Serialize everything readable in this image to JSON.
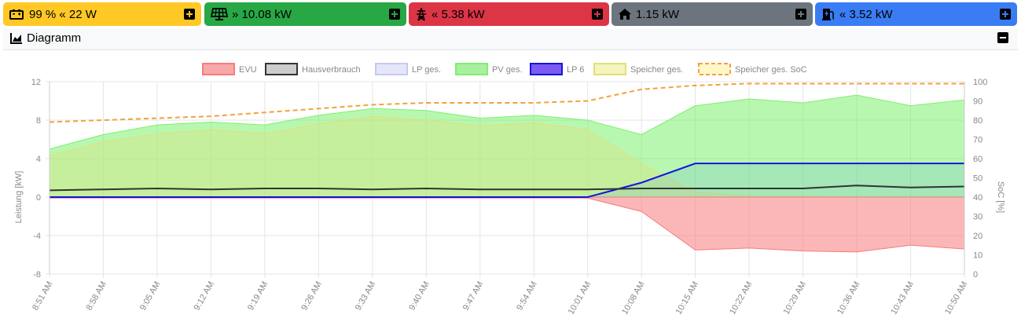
{
  "tiles": [
    {
      "id": "battery",
      "value": "99 % « 22 W",
      "color": "#ffc824",
      "text": "#000000"
    },
    {
      "id": "pv",
      "value": "» 10.08 kW",
      "color": "#28a745",
      "text": "#ffffff"
    },
    {
      "id": "grid",
      "value": "« 5.38 kW",
      "color": "#dc3545",
      "text": "#ffffff"
    },
    {
      "id": "house",
      "value": "1.15 kW",
      "color": "#6c757d",
      "text": "#ffffff"
    },
    {
      "id": "charge",
      "value": "« 3.52 kW",
      "color": "#3a7cf3",
      "text": "#ffffff"
    }
  ],
  "panel": {
    "title": "Diagramm"
  },
  "chart_data": {
    "type": "area",
    "x": [
      "8:51 AM",
      "8:58 AM",
      "9:05 AM",
      "9:12 AM",
      "9:19 AM",
      "9:26 AM",
      "9:33 AM",
      "9:40 AM",
      "9:47 AM",
      "9:54 AM",
      "10:01 AM",
      "10:08 AM",
      "10:15 AM",
      "10:22 AM",
      "10:29 AM",
      "10:36 AM",
      "10:43 AM",
      "10:50 AM"
    ],
    "ylabel": "Leistung [kW]",
    "y2label": "SoC [%]",
    "ylim": [
      -8,
      12
    ],
    "y2lim": [
      0,
      100
    ],
    "yticks": [
      "12",
      "8",
      "4",
      "0",
      "-4",
      "-8"
    ],
    "y2ticks": [
      "100",
      "90",
      "80",
      "70",
      "60",
      "50",
      "40",
      "30",
      "20",
      "10",
      "0"
    ],
    "legend": [
      "EVU",
      "Hausverbrauch",
      "LP ges.",
      "PV ges.",
      "LP 6",
      "Speicher ges.",
      "Speicher ges. SoC"
    ],
    "legend_position": "top",
    "grid": true,
    "series": [
      {
        "name": "EVU",
        "color": "#f77b7b",
        "values": [
          -0.1,
          -0.1,
          -0.1,
          -0.1,
          -0.1,
          -0.1,
          -0.1,
          -0.1,
          -0.1,
          -0.1,
          -0.1,
          -1.5,
          -5.5,
          -5.3,
          -5.6,
          -5.7,
          -5.0,
          -5.4
        ]
      },
      {
        "name": "Hausverbrauch",
        "color": "#333333",
        "values": [
          0.7,
          0.8,
          0.9,
          0.8,
          0.9,
          0.9,
          0.8,
          0.9,
          0.8,
          0.8,
          0.8,
          0.9,
          0.9,
          0.9,
          0.9,
          1.2,
          1.0,
          1.1
        ]
      },
      {
        "name": "PV ges.",
        "color": "#7ef06f",
        "values": [
          5.0,
          6.5,
          7.5,
          7.8,
          7.5,
          8.5,
          9.2,
          9.0,
          8.2,
          8.5,
          8.0,
          6.5,
          9.5,
          10.2,
          9.8,
          10.6,
          9.5,
          10.1
        ]
      },
      {
        "name": "LP 6",
        "color": "#1414e0",
        "values": [
          0,
          0,
          0,
          0,
          0,
          0,
          0,
          0,
          0,
          0,
          0,
          1.5,
          3.5,
          3.5,
          3.5,
          3.5,
          3.5,
          3.5
        ]
      },
      {
        "name": "Speicher ges.",
        "color": "#e0e07a",
        "values": [
          4.3,
          5.7,
          6.6,
          7.0,
          6.6,
          7.6,
          8.4,
          8.0,
          7.4,
          7.7,
          7.0,
          3.5,
          0.5,
          0.1,
          0.1,
          0.0,
          0.0,
          0.0
        ]
      },
      {
        "name": "Speicher ges. SoC",
        "color": "#f4a13c",
        "values": [
          79,
          80,
          81,
          82,
          84,
          86,
          88,
          89,
          89,
          89,
          90,
          96,
          98,
          99,
          99,
          99,
          99,
          99
        ]
      }
    ]
  }
}
